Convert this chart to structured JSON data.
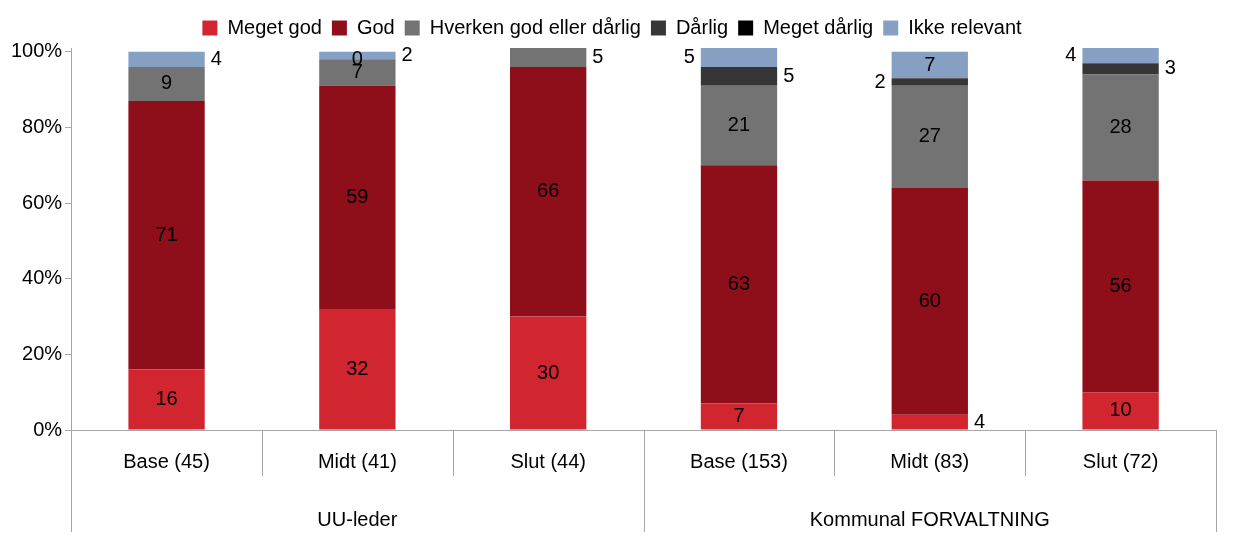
{
  "chart_data": {
    "type": "bar",
    "stacked": true,
    "categories": [
      "Base (45)",
      "Midt (41)",
      "Slut (44)",
      "Base (153)",
      "Midt (83)",
      "Slut (72)"
    ],
    "annotations": [
      "UU-leder",
      "Kommunal FORVALTNING"
    ],
    "series": [
      {
        "name": "Meget god",
        "color": "#d12530",
        "values": [
          16,
          32,
          30,
          7,
          4,
          10
        ],
        "value_labels": [
          "16",
          "32",
          "30",
          "7",
          "4",
          "10"
        ]
      },
      {
        "name": "God",
        "color": "#8e0e1a",
        "values": [
          71,
          59,
          66,
          63,
          60,
          56
        ],
        "value_labels": [
          "71",
          "59",
          "66",
          "63",
          "60",
          "56"
        ]
      },
      {
        "name": "Hverken god eller dårlig",
        "color": "#737373",
        "values": [
          9,
          7,
          5,
          21,
          27,
          28
        ],
        "value_labels": [
          "9",
          "7",
          "5",
          "21",
          "27",
          "28"
        ]
      },
      {
        "name": "Dårlig",
        "color": "#363636",
        "values": [
          null,
          0,
          null,
          5,
          2,
          3
        ],
        "value_labels": [
          null,
          "0",
          null,
          "5",
          "2",
          "3"
        ]
      },
      {
        "name": "Meget dårlig",
        "color": "#000000",
        "values": [
          null,
          null,
          null,
          null,
          null,
          null
        ]
      },
      {
        "name": "Ikke relevant",
        "color": "#86a0c4",
        "values": [
          4,
          2,
          null,
          5,
          7,
          4
        ],
        "value_labels": [
          "4",
          "2",
          null,
          "5",
          "7",
          "4"
        ]
      }
    ],
    "ylim": [
      0,
      101
    ],
    "yticks": [
      {
        "value": 0,
        "label": "0%"
      },
      {
        "value": 20,
        "label": "20%"
      },
      {
        "value": 40,
        "label": "40%"
      },
      {
        "value": 60,
        "label": "60%"
      },
      {
        "value": 80,
        "label": "80%"
      },
      {
        "value": 100,
        "label": "100%"
      }
    ],
    "grid": false,
    "legend": "top"
  }
}
